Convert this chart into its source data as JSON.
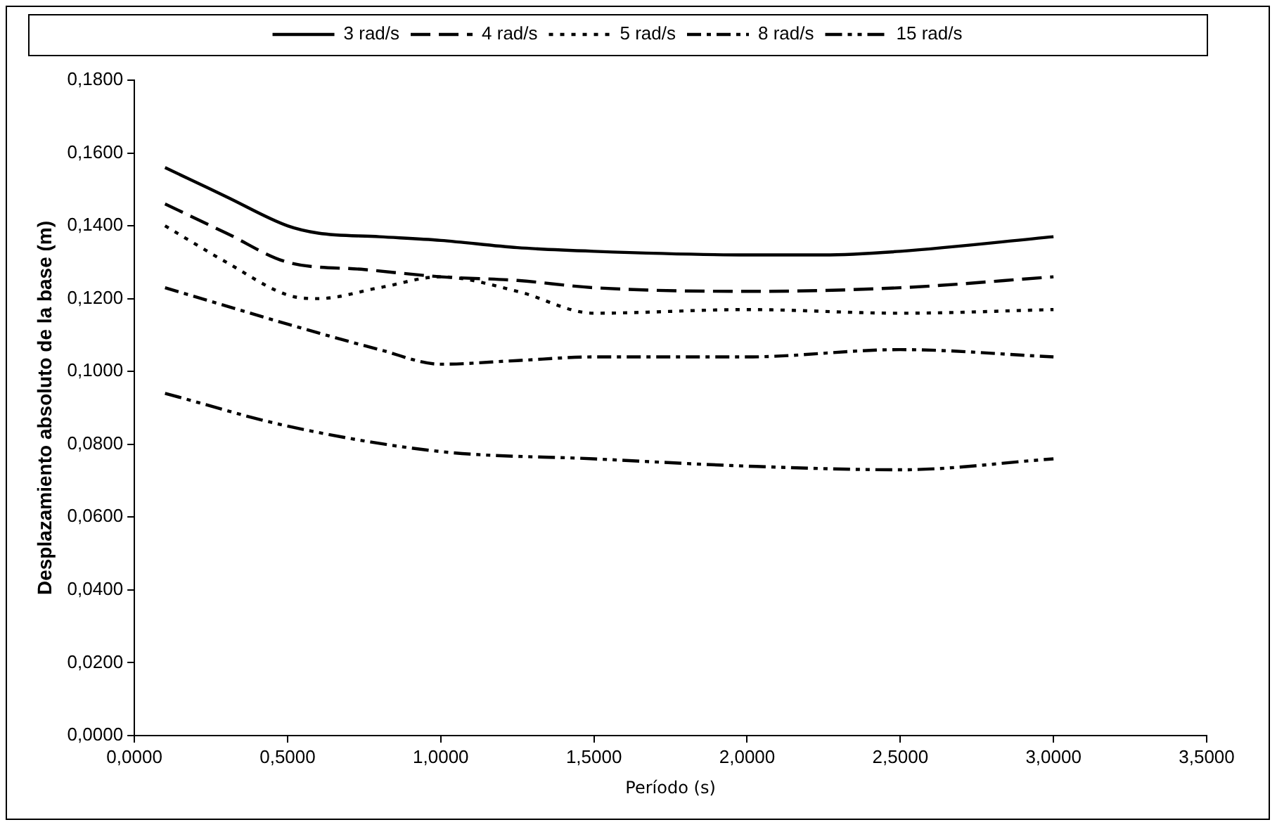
{
  "chart_data": {
    "type": "line",
    "xlabel": "Período (s)",
    "ylabel": "Desplazamiento absoluto de la base (m)",
    "xlim": [
      0,
      3.5
    ],
    "xticks": [
      {
        "value": 0,
        "label": "0,0000"
      },
      {
        "value": 0.5,
        "label": "0,5000"
      },
      {
        "value": 1,
        "label": "1,0000"
      },
      {
        "value": 1.5,
        "label": "1,5000"
      },
      {
        "value": 2,
        "label": "2,0000"
      },
      {
        "value": 2.5,
        "label": "2,5000"
      },
      {
        "value": 3,
        "label": "3,0000"
      },
      {
        "value": 3.5,
        "label": "3,5000"
      }
    ],
    "ylim": [
      0,
      0.18
    ],
    "yticks": [
      {
        "value": 0,
        "label": "0,0000"
      },
      {
        "value": 0.02,
        "label": "0,0200"
      },
      {
        "value": 0.04,
        "label": "0,0400"
      },
      {
        "value": 0.06,
        "label": "0,0600"
      },
      {
        "value": 0.08,
        "label": "0,0800"
      },
      {
        "value": 0.1,
        "label": "0,1000"
      },
      {
        "value": 0.12,
        "label": "0,1200"
      },
      {
        "value": 0.14,
        "label": "0,1400"
      },
      {
        "value": 0.16,
        "label": "0,1600"
      },
      {
        "value": 0.18,
        "label": "0,1800"
      }
    ],
    "grid": false,
    "legend": "top",
    "marker": "none",
    "series": [
      {
        "name": "3 rad/s",
        "color": "#000000",
        "line_style": "solid",
        "x": [
          0.1,
          0.3,
          0.5,
          0.6,
          0.8,
          1.0,
          1.25,
          1.5,
          2.0,
          2.25,
          2.5,
          3.0
        ],
        "values": [
          0.156,
          0.148,
          0.14,
          0.138,
          0.137,
          0.136,
          0.134,
          0.133,
          0.132,
          0.132,
          0.133,
          0.137
        ]
      },
      {
        "name": "4 rad/s",
        "color": "#000000",
        "line_style": "dashed",
        "x": [
          0.1,
          0.3,
          0.5,
          0.75,
          1.0,
          1.25,
          1.5,
          2.0,
          2.5,
          3.0
        ],
        "values": [
          0.146,
          0.138,
          0.13,
          0.128,
          0.126,
          0.125,
          0.123,
          0.122,
          0.123,
          0.126
        ]
      },
      {
        "name": "5 rad/s",
        "color": "#000000",
        "line_style": "dotted",
        "x": [
          0.1,
          0.3,
          0.5,
          0.6,
          0.8,
          1.0,
          1.25,
          1.5,
          2.0,
          2.5,
          3.0
        ],
        "values": [
          0.14,
          0.13,
          0.121,
          0.12,
          0.123,
          0.126,
          0.122,
          0.116,
          0.117,
          0.116,
          0.117
        ]
      },
      {
        "name": "8 rad/s",
        "color": "#000000",
        "line_style": "dashdot",
        "x": [
          0.1,
          0.3,
          0.5,
          0.8,
          1.0,
          1.25,
          1.5,
          2.0,
          2.5,
          3.0
        ],
        "values": [
          0.123,
          0.118,
          0.113,
          0.106,
          0.102,
          0.103,
          0.104,
          0.104,
          0.106,
          0.104
        ]
      },
      {
        "name": "15 rad/s",
        "color": "#000000",
        "line_style": "dashdotdot",
        "x": [
          0.1,
          0.5,
          1.0,
          1.5,
          2.0,
          2.5,
          3.0
        ],
        "values": [
          0.094,
          0.085,
          0.078,
          0.076,
          0.074,
          0.073,
          0.076
        ]
      }
    ]
  }
}
